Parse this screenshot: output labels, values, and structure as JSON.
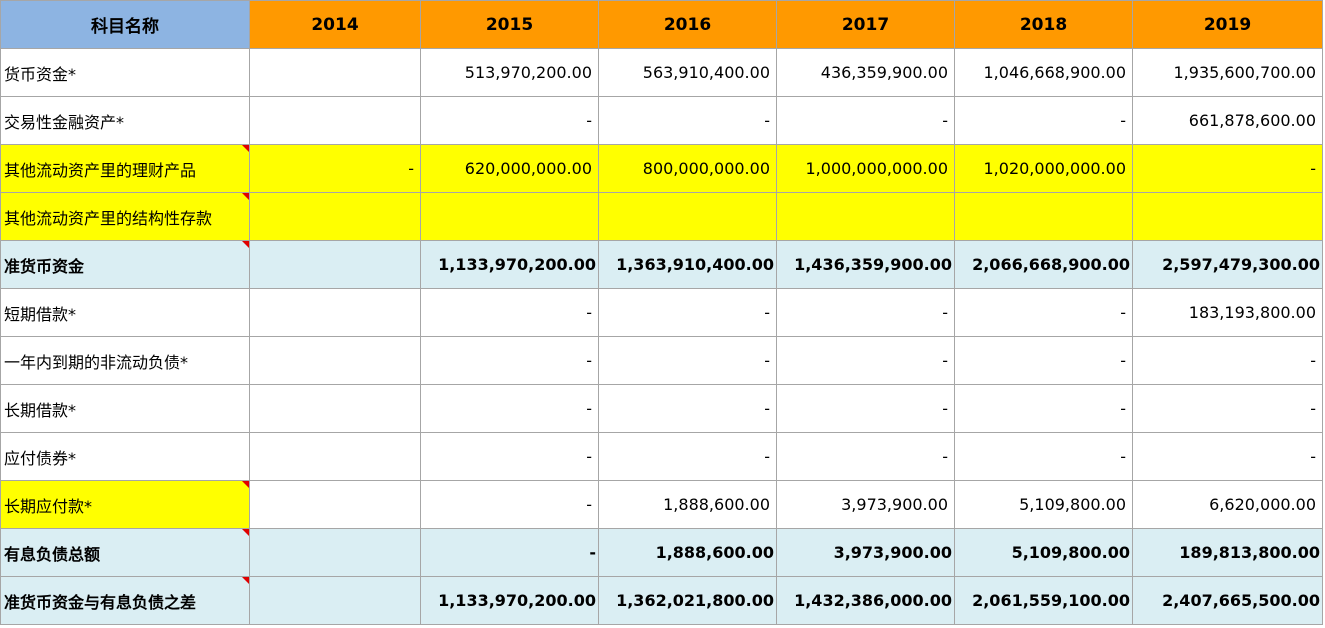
{
  "table": {
    "header": [
      "科目名称",
      "2014",
      "2015",
      "2016",
      "2017",
      "2018",
      "2019"
    ],
    "rows": [
      [
        "货币资金*",
        null,
        "513,970,200.00",
        "563,910,400.00",
        "436,359,900.00",
        "1,046,668,900.00",
        "1,935,600,700.00"
      ],
      [
        "交易性金融资产*",
        null,
        "-",
        "-",
        "-",
        "-",
        "661,878,600.00"
      ],
      [
        "其他流动资产里的理财产品",
        "-",
        "620,000,000.00",
        "800,000,000.00",
        "1,000,000,000.00",
        "1,020,000,000.00",
        "-"
      ],
      [
        "其他流动资产里的结构性存款",
        null,
        null,
        null,
        null,
        null,
        null
      ],
      [
        "准货币资金",
        null,
        "1,133,970,200.00",
        "1,363,910,400.00",
        "1,436,359,900.00",
        "2,066,668,900.00",
        "2,597,479,300.00"
      ],
      [
        "短期借款*",
        null,
        "-",
        "-",
        "-",
        "-",
        "183,193,800.00"
      ],
      [
        "一年内到期的非流动负债*",
        null,
        "-",
        "-",
        "-",
        "-",
        "-"
      ],
      [
        "长期借款*",
        null,
        "-",
        "-",
        "-",
        "-",
        "-"
      ],
      [
        "应付债券*",
        null,
        "-",
        "-",
        "-",
        "-",
        "-"
      ],
      [
        "长期应付款*",
        null,
        "-",
        "1,888,600.00",
        "3,973,900.00",
        "5,109,800.00",
        "6,620,000.00"
      ],
      [
        "有息负债总额",
        null,
        "-",
        "1,888,600.00",
        "3,973,900.00",
        "5,109,800.00",
        "189,813,800.00"
      ],
      [
        "准货币资金与有息负债之差",
        null,
        "1,133,970,200.00",
        "1,362,021,800.00",
        "1,432,386,000.00",
        "2,061,559,100.00",
        "2,407,665,500.00"
      ]
    ]
  }
}
